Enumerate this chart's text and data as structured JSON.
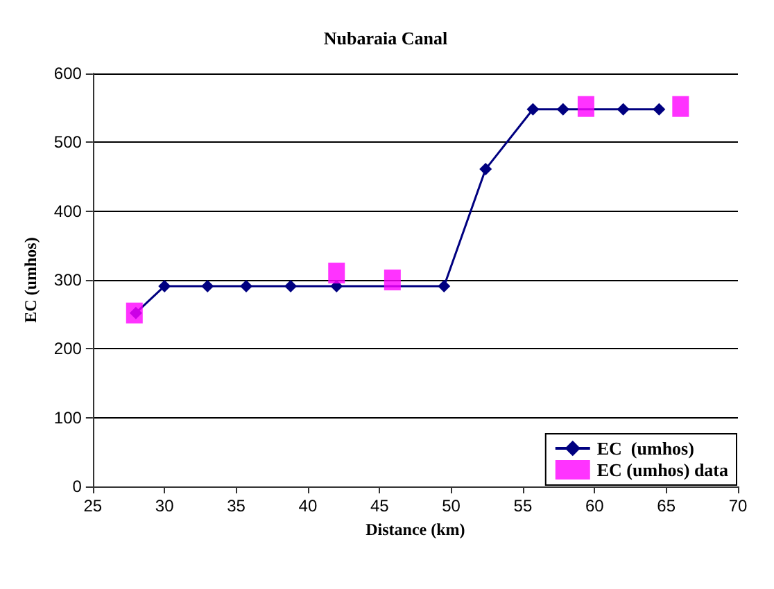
{
  "chart_data": {
    "type": "line",
    "title": "Nubaraia Canal",
    "xlabel": "Distance (km)",
    "ylabel": "EC (umhos)",
    "xlim": [
      25,
      70
    ],
    "xticks": [
      25,
      30,
      35,
      40,
      45,
      50,
      55,
      60,
      65,
      70
    ],
    "ylim": [
      0,
      600
    ],
    "yticks": [
      0,
      100,
      200,
      300,
      400,
      500,
      600
    ],
    "grid": "y",
    "legend": "bottom right",
    "series": [
      {
        "name": "EC  (umhos)",
        "color": "#000080",
        "marker": "diamond",
        "x": [
          28,
          30,
          33,
          35.7,
          38.8,
          42,
          49.5,
          52.4,
          55.7,
          57.8,
          62,
          64.5
        ],
        "values": [
          252,
          291,
          291,
          291,
          291,
          291,
          291,
          461,
          548,
          548,
          548,
          548
        ]
      },
      {
        "name": "EC (umhos) data",
        "type": "scatter",
        "color": "#ff00ff",
        "marker": "square",
        "x": [
          27.9,
          42,
          45.9,
          59.4,
          66
        ],
        "values": [
          252,
          310,
          300,
          552,
          552
        ]
      }
    ]
  }
}
